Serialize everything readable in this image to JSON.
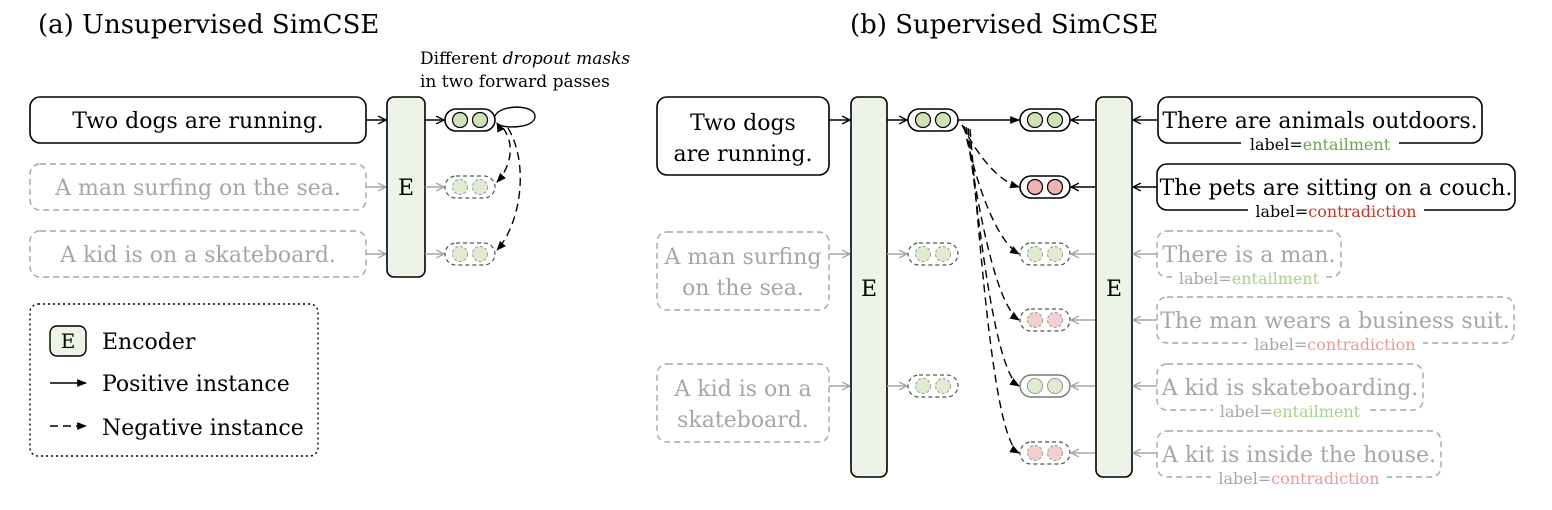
{
  "panel_a": {
    "title": "(a) Unsupervised SimCSE",
    "note_line1_pre": "Different ",
    "note_line1_em": "dropout masks",
    "note_line2": "in two forward passes",
    "sentences": [
      "Two dogs are running.",
      "A man surfing on the sea.",
      "A kid is on a skateboard."
    ],
    "encoder_label": "E"
  },
  "legend": {
    "encoder_glyph": "E",
    "encoder": "Encoder",
    "positive": "Positive instance",
    "negative": "Negative instance"
  },
  "panel_b": {
    "title": "(b) Supervised SimCSE",
    "encoder_label": "E",
    "premises": [
      [
        "Two dogs",
        "are running."
      ],
      [
        "A man surfing",
        "on the sea."
      ],
      [
        "A kid is on a",
        "skateboard."
      ]
    ],
    "label_prefix": "label=",
    "hypotheses": [
      {
        "text": "There are animals outdoors.",
        "label": "entailment"
      },
      {
        "text": "The pets are sitting on a couch.",
        "label": "contradiction"
      },
      {
        "text": "There is a man.",
        "label": "entailment"
      },
      {
        "text": "The man wears a business suit.",
        "label": "contradiction"
      },
      {
        "text": "A kid is skateboarding.",
        "label": "entailment"
      },
      {
        "text": "A kit is inside the house.",
        "label": "contradiction"
      }
    ]
  },
  "colors": {
    "ink": "#000000",
    "muted": "#a6a6a6",
    "encoder_fill": "#edf3e6",
    "green_dot": "#cfe3b8",
    "red_dot": "#eeb4b4",
    "entailment": "#6aa84f",
    "contradiction": "#c0392b",
    "entailment_light": "#a9d08e",
    "contradiction_light": "#e89a9a"
  }
}
